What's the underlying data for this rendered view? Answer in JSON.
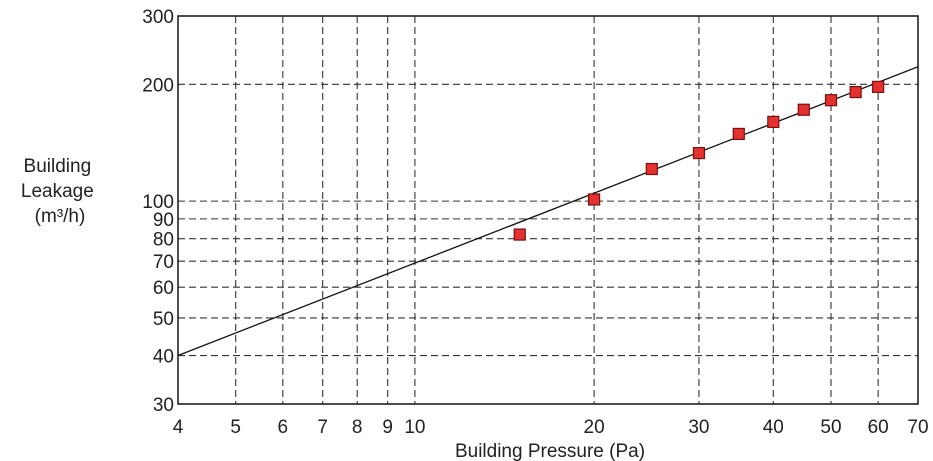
{
  "chart_data": {
    "type": "scatter",
    "xlabel": "Building Pressure (Pa)",
    "ylabel": [
      "Building",
      "Leakage",
      "(m³/h)"
    ],
    "xscale": "log",
    "yscale": "log",
    "xlim": [
      4,
      70
    ],
    "ylim": [
      30,
      300
    ],
    "xticks": [
      4,
      5,
      6,
      7,
      8,
      9,
      10,
      20,
      30,
      40,
      50,
      60,
      70
    ],
    "yticks": [
      30,
      40,
      50,
      60,
      70,
      80,
      90,
      100,
      200,
      300
    ],
    "grid": true,
    "points": [
      {
        "x": 15,
        "y": 82
      },
      {
        "x": 20,
        "y": 101
      },
      {
        "x": 25,
        "y": 121
      },
      {
        "x": 30,
        "y": 133
      },
      {
        "x": 35,
        "y": 149
      },
      {
        "x": 40,
        "y": 160
      },
      {
        "x": 45,
        "y": 172
      },
      {
        "x": 50,
        "y": 182
      },
      {
        "x": 55,
        "y": 191
      },
      {
        "x": 60,
        "y": 197
      }
    ],
    "fit_line": {
      "x": [
        4,
        70
      ],
      "y": [
        40,
        222
      ]
    },
    "colors": {
      "marker": "#e53030",
      "line": "#111111",
      "grid": "#333333"
    }
  }
}
